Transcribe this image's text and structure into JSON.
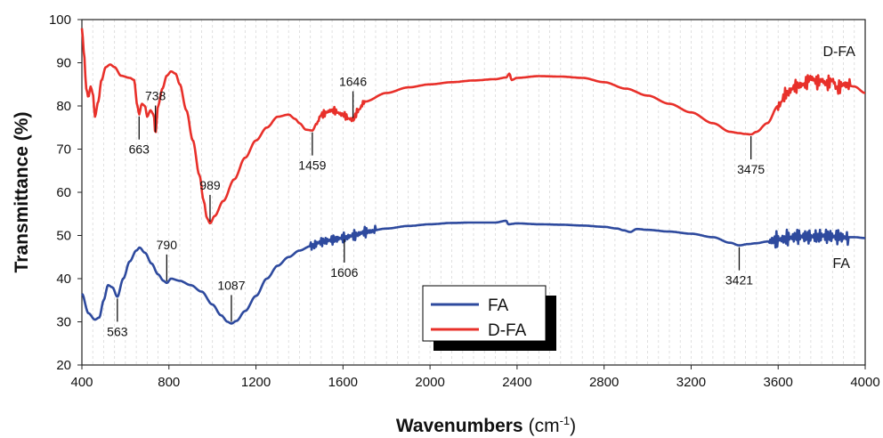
{
  "chart_data": {
    "type": "line",
    "xlabel": "Wavenumbers",
    "xlabel_unit_base": "(cm",
    "xlabel_unit_exp": "-1",
    "xlabel_unit_close": ")",
    "ylabel": "Transmittance (%)",
    "xlim": [
      400,
      4000
    ],
    "ylim": [
      20,
      100
    ],
    "x_ticks": [
      400,
      800,
      1200,
      1600,
      2000,
      2400,
      2800,
      3200,
      3600,
      4000
    ],
    "y_ticks": [
      20,
      30,
      40,
      50,
      60,
      70,
      80,
      90,
      100
    ],
    "grid": "vertical dashed",
    "legend_position": "bottom-center",
    "series": [
      {
        "name": "FA",
        "color": "#2e4a9e",
        "points": [
          [
            400,
            36.5
          ],
          [
            430,
            32
          ],
          [
            460,
            30.5
          ],
          [
            480,
            31
          ],
          [
            500,
            35
          ],
          [
            520,
            38.5
          ],
          [
            540,
            38
          ],
          [
            563,
            35.8
          ],
          [
            590,
            40
          ],
          [
            620,
            44
          ],
          [
            650,
            46.5
          ],
          [
            665,
            47.2
          ],
          [
            690,
            46
          ],
          [
            720,
            43.5
          ],
          [
            750,
            41
          ],
          [
            775,
            39.5
          ],
          [
            790,
            39
          ],
          [
            810,
            40
          ],
          [
            850,
            39.5
          ],
          [
            900,
            38.5
          ],
          [
            950,
            37
          ],
          [
            1000,
            34
          ],
          [
            1040,
            31.5
          ],
          [
            1070,
            30
          ],
          [
            1087,
            29.6
          ],
          [
            1110,
            30.2
          ],
          [
            1150,
            32.5
          ],
          [
            1200,
            36
          ],
          [
            1250,
            40
          ],
          [
            1300,
            43
          ],
          [
            1350,
            45
          ],
          [
            1400,
            46.5
          ],
          [
            1450,
            47.5
          ],
          [
            1500,
            48.5
          ],
          [
            1550,
            49
          ],
          [
            1606,
            49.5
          ],
          [
            1650,
            50
          ],
          [
            1700,
            50.8
          ],
          [
            1800,
            51.6
          ],
          [
            1900,
            52.2
          ],
          [
            2000,
            52.6
          ],
          [
            2100,
            52.9
          ],
          [
            2200,
            53
          ],
          [
            2300,
            53
          ],
          [
            2350,
            53.4
          ],
          [
            2360,
            52.6
          ],
          [
            2400,
            52.8
          ],
          [
            2500,
            52.6
          ],
          [
            2600,
            52.5
          ],
          [
            2700,
            52.3
          ],
          [
            2800,
            52
          ],
          [
            2860,
            51.6
          ],
          [
            2890,
            51.2
          ],
          [
            2920,
            50.8
          ],
          [
            2950,
            51.5
          ],
          [
            3000,
            51.3
          ],
          [
            3100,
            50.9
          ],
          [
            3200,
            50.4
          ],
          [
            3300,
            49.6
          ],
          [
            3380,
            48.3
          ],
          [
            3421,
            47.7
          ],
          [
            3460,
            48
          ],
          [
            3500,
            48.2
          ],
          [
            3550,
            48.6
          ],
          [
            3600,
            49
          ],
          [
            3650,
            49.5
          ],
          [
            3700,
            49.8
          ],
          [
            3750,
            49.7
          ],
          [
            3800,
            49.9
          ],
          [
            3850,
            49.8
          ],
          [
            3900,
            49.6
          ],
          [
            3950,
            49.6
          ],
          [
            4000,
            49.4
          ]
        ]
      },
      {
        "name": "D-FA",
        "color": "#e8302a",
        "points": [
          [
            400,
            98
          ],
          [
            410,
            92
          ],
          [
            420,
            84
          ],
          [
            430,
            82
          ],
          [
            440,
            84.5
          ],
          [
            450,
            83
          ],
          [
            460,
            77.5
          ],
          [
            475,
            81
          ],
          [
            490,
            86
          ],
          [
            510,
            89
          ],
          [
            530,
            89.6
          ],
          [
            550,
            89
          ],
          [
            580,
            87
          ],
          [
            620,
            86.5
          ],
          [
            640,
            86
          ],
          [
            655,
            80
          ],
          [
            663,
            78
          ],
          [
            675,
            80.5
          ],
          [
            690,
            80
          ],
          [
            700,
            77.5
          ],
          [
            715,
            79
          ],
          [
            730,
            78
          ],
          [
            738,
            73.5
          ],
          [
            750,
            80
          ],
          [
            770,
            84
          ],
          [
            790,
            87
          ],
          [
            810,
            88
          ],
          [
            830,
            87.5
          ],
          [
            850,
            85
          ],
          [
            880,
            79
          ],
          [
            910,
            72
          ],
          [
            940,
            64
          ],
          [
            960,
            58
          ],
          [
            975,
            54
          ],
          [
            989,
            52.8
          ],
          [
            1010,
            54.5
          ],
          [
            1050,
            58
          ],
          [
            1100,
            63
          ],
          [
            1150,
            68
          ],
          [
            1200,
            72
          ],
          [
            1250,
            75
          ],
          [
            1300,
            77.5
          ],
          [
            1350,
            78
          ],
          [
            1380,
            77
          ],
          [
            1400,
            76
          ],
          [
            1430,
            74.5
          ],
          [
            1459,
            74.3
          ],
          [
            1480,
            76
          ],
          [
            1500,
            78
          ],
          [
            1550,
            79
          ],
          [
            1600,
            78
          ],
          [
            1630,
            77
          ],
          [
            1646,
            76.8
          ],
          [
            1670,
            79
          ],
          [
            1700,
            81
          ],
          [
            1800,
            83
          ],
          [
            1900,
            84.3
          ],
          [
            2000,
            85
          ],
          [
            2100,
            85.5
          ],
          [
            2200,
            85.9
          ],
          [
            2300,
            86.2
          ],
          [
            2350,
            86.6
          ],
          [
            2365,
            87.5
          ],
          [
            2375,
            86
          ],
          [
            2400,
            86.5
          ],
          [
            2500,
            86.9
          ],
          [
            2600,
            86.8
          ],
          [
            2700,
            86.5
          ],
          [
            2800,
            85.5
          ],
          [
            2900,
            84
          ],
          [
            3000,
            82.4
          ],
          [
            3100,
            80.5
          ],
          [
            3200,
            78.5
          ],
          [
            3300,
            76
          ],
          [
            3380,
            74
          ],
          [
            3420,
            73.7
          ],
          [
            3450,
            73.5
          ],
          [
            3475,
            73.4
          ],
          [
            3500,
            74
          ],
          [
            3550,
            76
          ],
          [
            3600,
            80
          ],
          [
            3640,
            83
          ],
          [
            3680,
            84.5
          ],
          [
            3720,
            85
          ],
          [
            3750,
            86.5
          ],
          [
            3780,
            85.5
          ],
          [
            3800,
            86
          ],
          [
            3820,
            85
          ],
          [
            3850,
            86
          ],
          [
            3870,
            84
          ],
          [
            3900,
            85
          ],
          [
            3950,
            84.5
          ],
          [
            4000,
            83
          ]
        ]
      }
    ],
    "noise_regions": [
      {
        "series": 0,
        "from": 1450,
        "to": 1750,
        "amp": 1.3
      },
      {
        "series": 0,
        "from": 3560,
        "to": 3920,
        "amp": 2.1
      },
      {
        "series": 1,
        "from": 1480,
        "to": 1700,
        "amp": 0.9
      },
      {
        "series": 1,
        "from": 3600,
        "to": 3930,
        "amp": 1.7
      }
    ],
    "annotations": [
      {
        "text": "563",
        "series": "FA",
        "x": 563,
        "y": 35.8,
        "side": "below"
      },
      {
        "text": "790",
        "series": "FA",
        "x": 790,
        "y": 39,
        "side": "above"
      },
      {
        "text": "1087",
        "series": "FA",
        "x": 1087,
        "y": 29.6,
        "side": "above"
      },
      {
        "text": "1606",
        "series": "FA",
        "x": 1606,
        "y": 49.5,
        "side": "below"
      },
      {
        "text": "3421",
        "series": "FA",
        "x": 3421,
        "y": 47.7,
        "side": "below"
      },
      {
        "text": "663",
        "series": "D-FA",
        "x": 663,
        "y": 78,
        "side": "below"
      },
      {
        "text": "738",
        "series": "D-FA",
        "x": 738,
        "y": 73.5,
        "side": "above"
      },
      {
        "text": "989",
        "series": "D-FA",
        "x": 989,
        "y": 52.8,
        "side": "above"
      },
      {
        "text": "1459",
        "series": "D-FA",
        "x": 1459,
        "y": 74.3,
        "side": "below"
      },
      {
        "text": "1646",
        "series": "D-FA",
        "x": 1646,
        "y": 76.8,
        "side": "above"
      },
      {
        "text": "3475",
        "series": "D-FA",
        "x": 3475,
        "y": 73.4,
        "side": "below"
      }
    ],
    "series_tags": [
      {
        "text": "D-FA",
        "x": 3880,
        "y": 91.5
      },
      {
        "text": "FA",
        "x": 3890,
        "y": 42.5
      }
    ],
    "legend": [
      {
        "label": "FA",
        "color": "#2e4a9e"
      },
      {
        "label": "D-FA",
        "color": "#e8302a"
      }
    ]
  }
}
